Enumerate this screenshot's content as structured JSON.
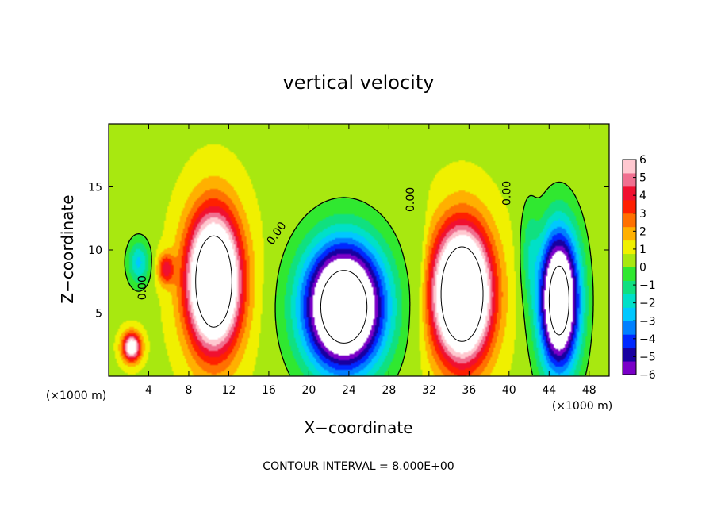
{
  "chart_data": {
    "type": "heatmap",
    "title": "vertical velocity",
    "xlabel": "X−coordinate",
    "ylabel": "Z−coordinate",
    "x_unit": "(×1000 m)",
    "y_unit": "(×1000 m)",
    "xlim": [
      0,
      50
    ],
    "ylim": [
      0,
      20
    ],
    "x_ticks": [
      4,
      8,
      12,
      16,
      20,
      24,
      28,
      32,
      36,
      40,
      44,
      48
    ],
    "y_ticks": [
      5,
      10,
      15
    ],
    "colorbar": {
      "ticks": [
        "6",
        "5",
        "4",
        "3",
        "2",
        "1",
        "0",
        "−1",
        "−2",
        "−3",
        "−4",
        "−5",
        "−6"
      ],
      "range": [
        -6,
        6
      ],
      "colors": [
        "#7a00c8",
        "#1800a0",
        "#0028ff",
        "#0080ff",
        "#00c8ff",
        "#00e0c8",
        "#10e080",
        "#30e830",
        "#a8e810",
        "#f0f000",
        "#ffb000",
        "#ff7000",
        "#ff2000",
        "#f01030",
        "#f07090",
        "#ffc8d0"
      ]
    },
    "contour_interval_label": "CONTOUR INTERVAL = 8.000E+00",
    "contour_labels": [
      "0.00",
      "0.00",
      "0.00",
      "0.00"
    ],
    "background_value": 0.6,
    "cells": [
      {
        "x": 10.5,
        "z": 7.5,
        "sx": 2.6,
        "sz": 5.2,
        "amp": 12
      },
      {
        "x": 35.3,
        "z": 6.5,
        "sx": 2.8,
        "sz": 5.0,
        "amp": 13
      },
      {
        "x": 23.5,
        "z": 5.5,
        "sx": 4.0,
        "sz": 5.0,
        "amp": -12
      },
      {
        "x": 45.0,
        "z": 6.0,
        "sx": 2.0,
        "sz": 5.5,
        "amp": -11
      },
      {
        "x": 2.3,
        "z": 2.3,
        "sx": 0.9,
        "sz": 1.1,
        "amp": 7
      },
      {
        "x": 5.7,
        "z": 8.5,
        "sx": 0.8,
        "sz": 1.2,
        "amp": 3.5
      },
      {
        "x": 3.0,
        "z": 9.0,
        "sx": 1.1,
        "sz": 1.8,
        "amp": -3
      },
      {
        "x": 31.0,
        "z": 9.0,
        "sx": 0.8,
        "sz": 6.0,
        "amp": -1
      },
      {
        "x": 42.0,
        "z": 10.0,
        "sx": 0.9,
        "sz": 4.0,
        "amp": -1.5
      }
    ]
  }
}
